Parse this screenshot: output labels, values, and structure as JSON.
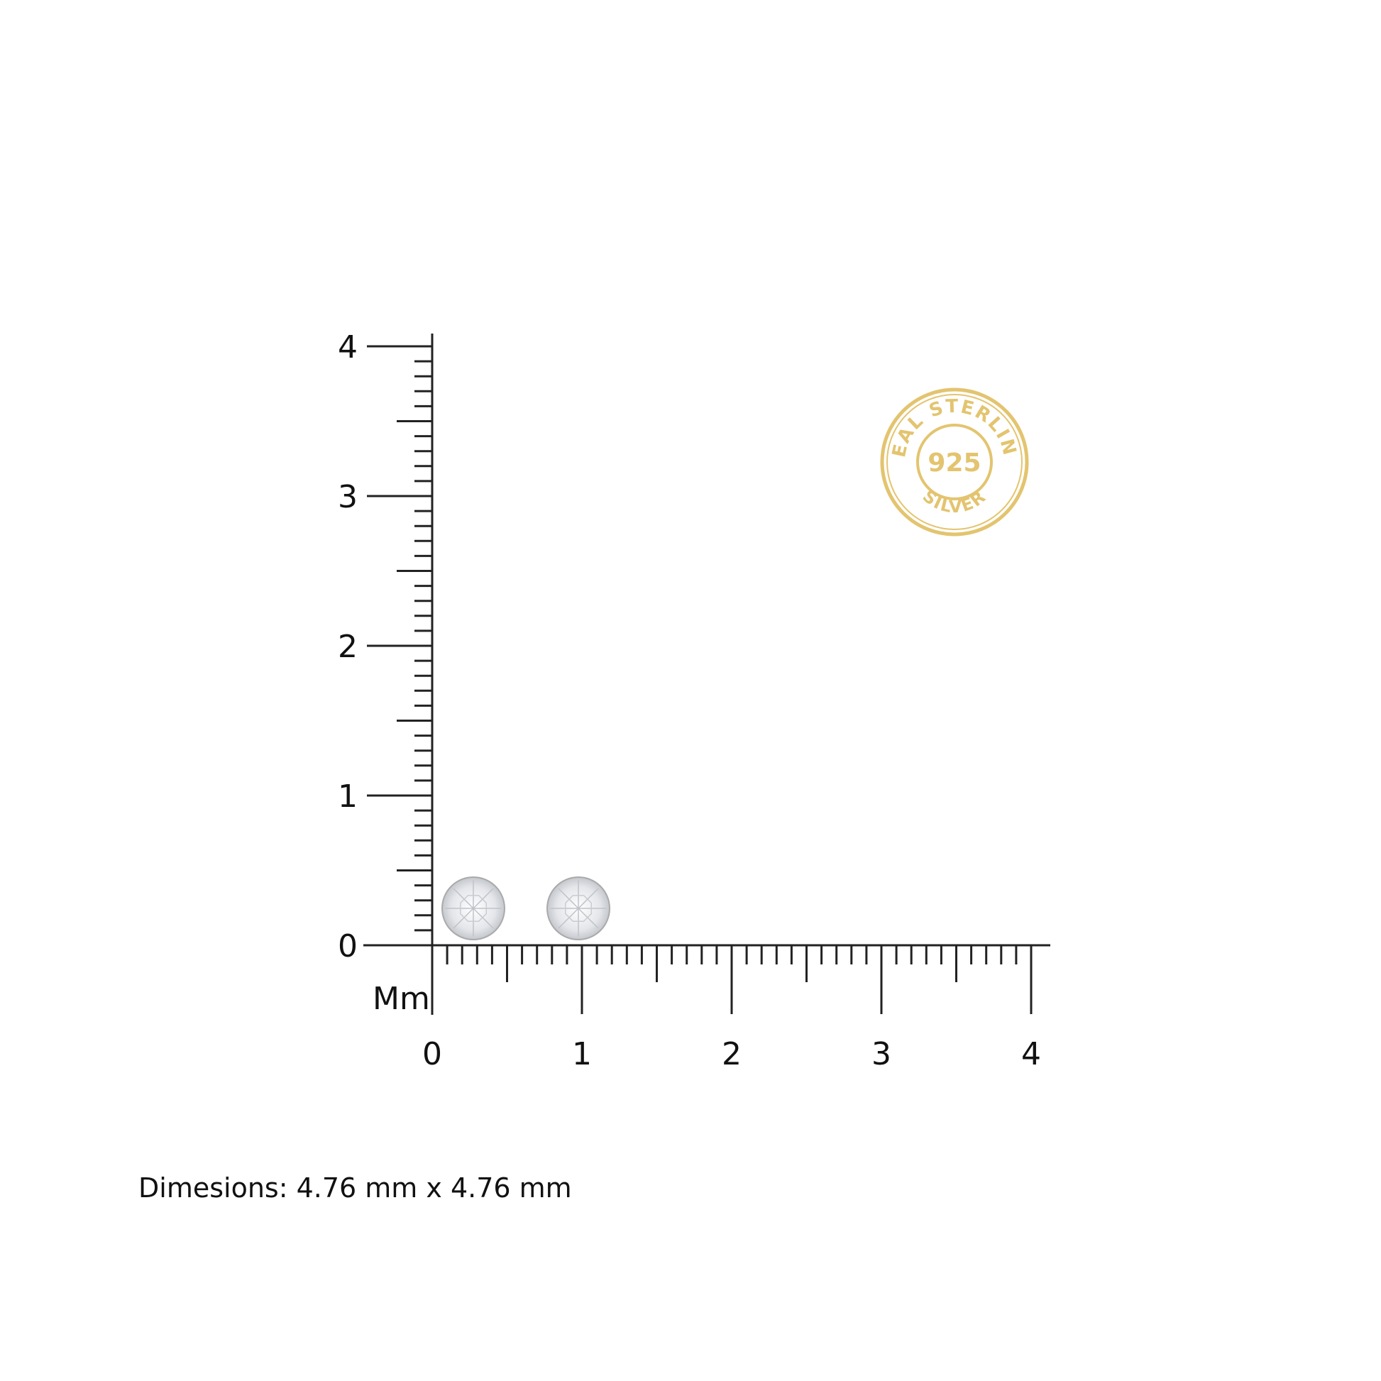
{
  "ruler": {
    "unit_label": "Mm",
    "x_ticks": [
      "0",
      "1",
      "2",
      "3",
      "4"
    ],
    "y_ticks": [
      "0",
      "1",
      "2",
      "3",
      "4"
    ],
    "range_mm": [
      0,
      4
    ],
    "minor_step_mm": 0.1
  },
  "seal": {
    "top_text": "REAL STERLING",
    "center_text": "925",
    "bottom_text": "SILVER",
    "color": "#e3c46f"
  },
  "product": {
    "item_count": 2,
    "dimensions": "Dimesions: 4.76 mm x 4.76 mm"
  }
}
